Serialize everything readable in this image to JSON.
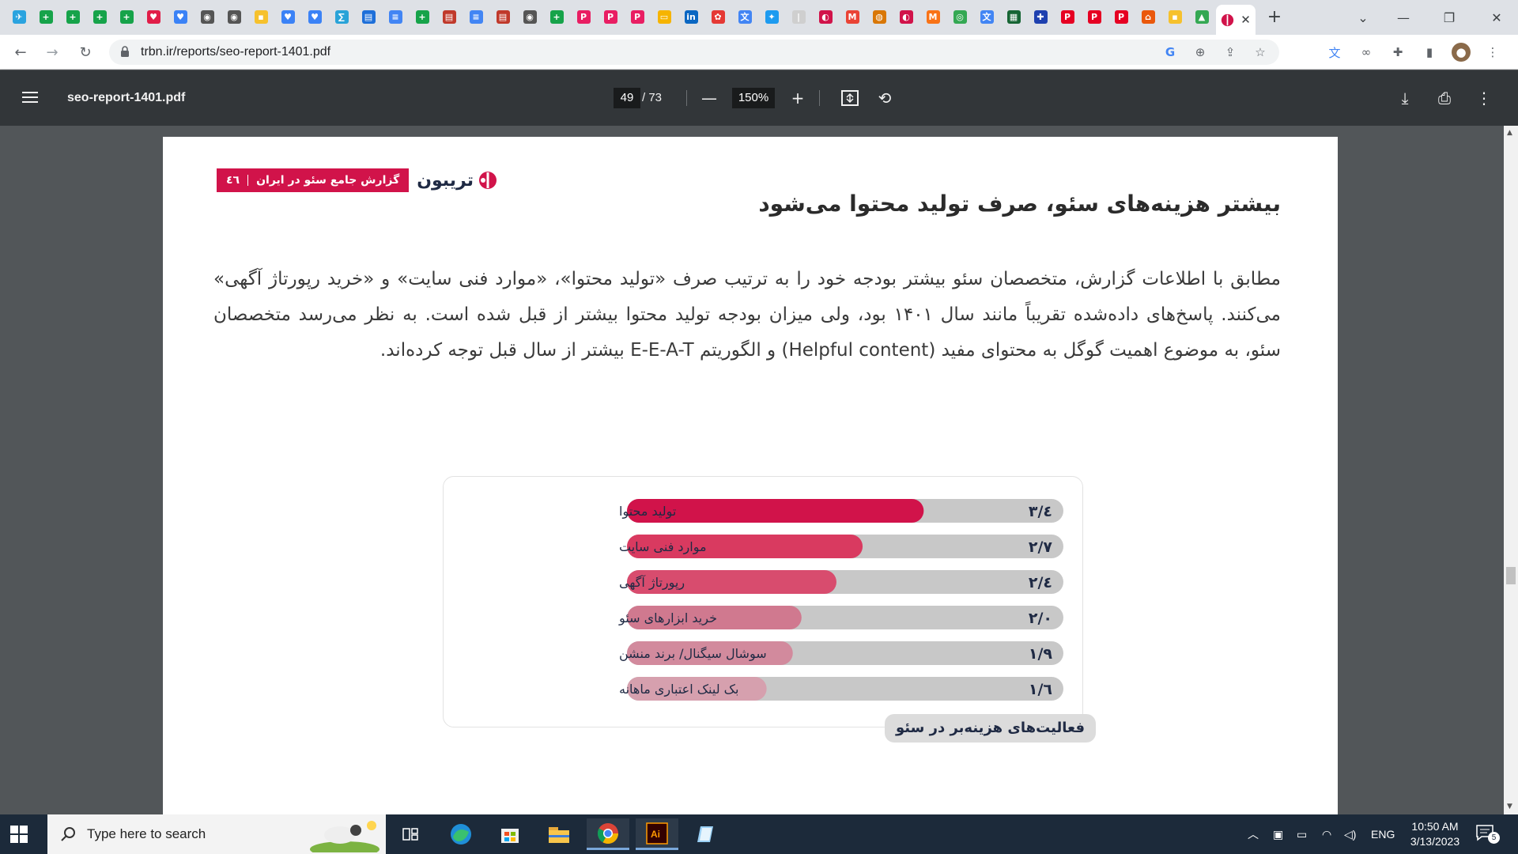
{
  "browser": {
    "pinned_tab_favicons": [
      {
        "icon": "telegram-icon",
        "color": "#2aa3df",
        "glyph": "✈"
      },
      {
        "icon": "sheets-icon",
        "color": "#16a34a",
        "glyph": "+"
      },
      {
        "icon": "sheets-icon",
        "color": "#16a34a",
        "glyph": "+"
      },
      {
        "icon": "sheets-icon",
        "color": "#16a34a",
        "glyph": "+"
      },
      {
        "icon": "sheets-icon",
        "color": "#16a34a",
        "glyph": "+"
      },
      {
        "icon": "heart-icon",
        "color": "#e11d48",
        "glyph": "♥"
      },
      {
        "icon": "bookmark-icon",
        "color": "#3b82f6",
        "glyph": "♥"
      },
      {
        "icon": "globe-icon",
        "color": "#555555",
        "glyph": "◉"
      },
      {
        "icon": "globe-icon",
        "color": "#555555",
        "glyph": "◉"
      },
      {
        "icon": "keep-icon",
        "color": "#f6c12d",
        "glyph": "▪"
      },
      {
        "icon": "bookmark-icon",
        "color": "#3b82f6",
        "glyph": "♥"
      },
      {
        "icon": "bookmark-icon",
        "color": "#3b82f6",
        "glyph": "♥"
      },
      {
        "icon": "link-icon",
        "color": "#29a3d8",
        "glyph": "∑"
      },
      {
        "icon": "docs-red-icon",
        "color": "#1e6fd9",
        "glyph": "▤"
      },
      {
        "icon": "docs-icon",
        "color": "#4285f4",
        "glyph": "≡"
      },
      {
        "icon": "sheets-icon",
        "color": "#16a34a",
        "glyph": "+"
      },
      {
        "icon": "slides-icon",
        "color": "#c0392b",
        "glyph": "▤"
      },
      {
        "icon": "docs-icon",
        "color": "#4285f4",
        "glyph": "≡"
      },
      {
        "icon": "slides-icon",
        "color": "#c0392b",
        "glyph": "▤"
      },
      {
        "icon": "globe-icon",
        "color": "#555555",
        "glyph": "◉"
      },
      {
        "icon": "sheets-icon",
        "color": "#16a34a",
        "glyph": "+"
      },
      {
        "icon": "p-icon",
        "color": "#e91e63",
        "glyph": "P"
      },
      {
        "icon": "p-icon",
        "color": "#e91e63",
        "glyph": "P"
      },
      {
        "icon": "p-icon",
        "color": "#e91e63",
        "glyph": "P"
      },
      {
        "icon": "slides-yellow-icon",
        "color": "#f6b400",
        "glyph": "▭"
      },
      {
        "icon": "linkedin-icon",
        "color": "#0a66c2",
        "glyph": "in"
      },
      {
        "icon": "app-icon",
        "color": "#e53935",
        "glyph": "✿"
      },
      {
        "icon": "translate-icon",
        "color": "#4285f4",
        "glyph": "文"
      },
      {
        "icon": "twitter-icon",
        "color": "#1d9bf0",
        "glyph": "✦"
      },
      {
        "icon": "blank-icon",
        "color": "#cfcfcf",
        "glyph": "|"
      },
      {
        "icon": "trbn-icon",
        "color": "#d1134a",
        "glyph": "◐"
      },
      {
        "icon": "gmail-icon",
        "color": "#ea4335",
        "glyph": "M"
      },
      {
        "icon": "app-icon",
        "color": "#d97706",
        "glyph": "◍"
      },
      {
        "icon": "trbn-icon",
        "color": "#d1134a",
        "glyph": "◐"
      },
      {
        "icon": "app-icon",
        "color": "#f97316",
        "glyph": "M"
      },
      {
        "icon": "chrome-icon",
        "color": "#34a853",
        "glyph": "◎"
      },
      {
        "icon": "translate-icon",
        "color": "#4285f4",
        "glyph": "文"
      },
      {
        "icon": "app-icon",
        "color": "#166534",
        "glyph": "▦"
      },
      {
        "icon": "dropbox-icon",
        "color": "#1e40af",
        "glyph": "✚"
      },
      {
        "icon": "pinterest-icon",
        "color": "#e60023",
        "glyph": "P"
      },
      {
        "icon": "pinterest-icon",
        "color": "#e60023",
        "glyph": "P"
      },
      {
        "icon": "pinterest-icon",
        "color": "#e60023",
        "glyph": "P"
      },
      {
        "icon": "app-icon",
        "color": "#ea580c",
        "glyph": "⌂"
      },
      {
        "icon": "keep-icon",
        "color": "#f6c12d",
        "glyph": "▪"
      },
      {
        "icon": "drive-icon",
        "color": "#34a853",
        "glyph": "▲"
      }
    ],
    "active_tab_favicon": "trbn-icon",
    "url": "trbn.ir/reports/seo-report-1401.pdf"
  },
  "pdf": {
    "filename": "seo-report-1401.pdf",
    "current_page": "49",
    "total_pages": "/ 73",
    "zoom": "150%"
  },
  "document": {
    "brand_badge": "گزارش جامع سئو در ایران",
    "brand_page_number": "٤٦",
    "brand_logo": "تریبون",
    "heading": "بیشتر هزینه‌های سئو، صرف تولید محتوا می‌شود",
    "paragraph": "مطابق با اطلاعات گزارش، متخصصان سئو بیشتر بودجه خود را به ترتیب صرف «تولید محتوا»، «موارد فنی سایت» و «خرید رپورتاژ آگهی» می‌کنند. پاسخ‌های داده‌شده تقریباً مانند سال ۱۴۰۱ بود، ولی میزان بودجه تولید محتوا بیشتر از قبل شده است. به نظر می‌رسد متخصصان سئو، به موضوع اهمیت گوگل به محتوای مفید (Helpful content) و الگوریتم E-E-A-T بیشتر از سال قبل توجه کرده‌اند."
  },
  "chart_data": {
    "type": "bar",
    "orientation": "horizontal",
    "title": "فعالیت‌های هزینه‌بر در سئو",
    "categories": [
      "تولید محتوا",
      "موارد فنی سایت",
      "رپورتاژ آگهی",
      "خرید ابزارهای سئو",
      "سوشال سیگنال/ برند منشن",
      "بک لینک اعتباری ماهانه"
    ],
    "values": [
      3.4,
      2.7,
      2.4,
      2.0,
      1.9,
      1.6
    ],
    "value_labels": [
      "٣/٤",
      "٢/٧",
      "٢/٤",
      "٢/٠",
      "١/٩",
      "١/٦"
    ],
    "xlim": [
      0,
      5
    ],
    "grid": false,
    "bar_colors": [
      "#d1134a",
      "#d93a60",
      "#d84c6e",
      "#d0798f",
      "#d28a9d",
      "#d6a0ae"
    ],
    "track_color": "#c8c8c8"
  },
  "taskbar": {
    "search_placeholder": "Type here to search",
    "language": "ENG",
    "time": "10:50 AM",
    "date": "3/13/2023",
    "notification_count": "5"
  }
}
